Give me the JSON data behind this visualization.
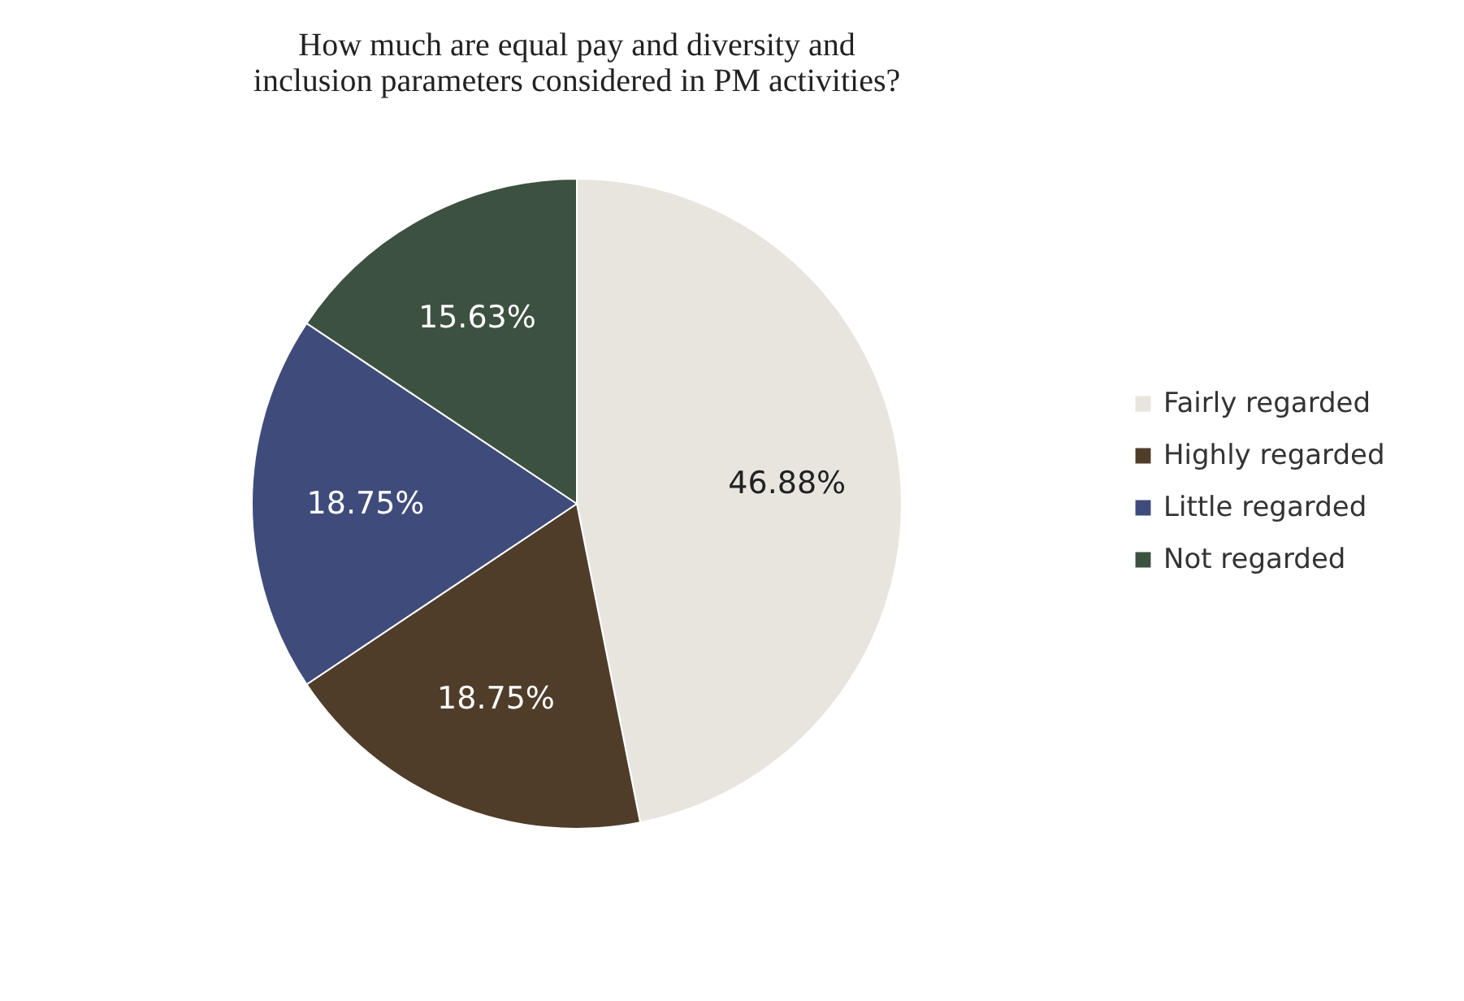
{
  "chart_data": {
    "type": "pie",
    "title": "How much are equal pay and diversity and inclusion parameters considered in PM activities?",
    "categories": [
      "Fairly regarded",
      "Highly regarded",
      "Little regarded",
      "Not regarded"
    ],
    "values": [
      46.88,
      18.75,
      18.75,
      15.63
    ],
    "colors": [
      "#e8e5de",
      "#4f3d2a",
      "#3f4c7b",
      "#3d5140"
    ],
    "value_labels": [
      "46.88%",
      "18.75%",
      "18.75%",
      "15.63%"
    ],
    "legend": "right"
  }
}
